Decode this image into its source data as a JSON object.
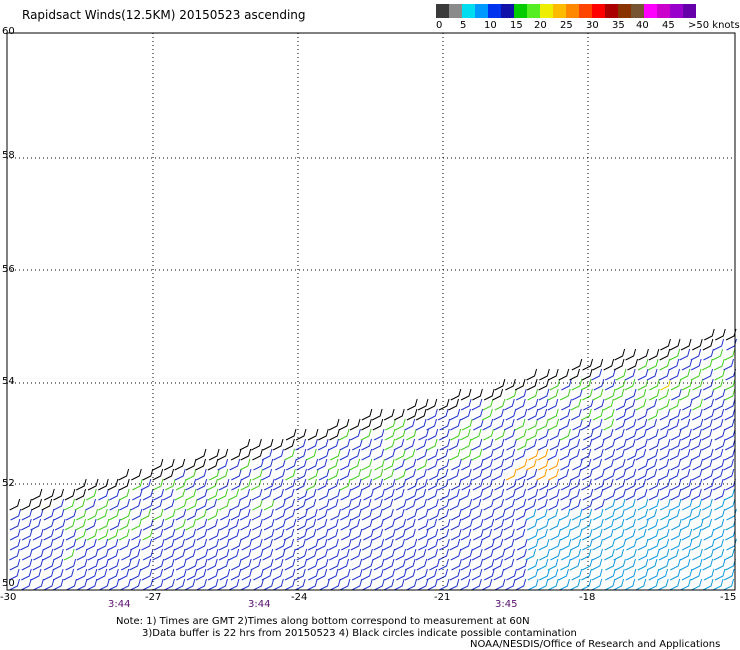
{
  "title": "Rapidsact Winds(12.5KM) 20150523 ascending",
  "scale": {
    "colors": [
      "#3a3a3a",
      "#8a8a8a",
      "#00ddee",
      "#0099ff",
      "#0033ee",
      "#1111aa",
      "#00cc00",
      "#55ee22",
      "#eeee00",
      "#ffbb00",
      "#ff8800",
      "#ff4400",
      "#ff0000",
      "#aa0000",
      "#883300",
      "#775533",
      "#ff00ff",
      "#cc00cc",
      "#9900cc",
      "#6600aa"
    ],
    "labels": [
      "0",
      "5",
      "10",
      "15",
      "20",
      "25",
      "30",
      "35",
      "40",
      "45",
      ">50 knots"
    ]
  },
  "axes": {
    "lon_labels": [
      "-30",
      "-27",
      "-24",
      "-21",
      "-18",
      "-15"
    ],
    "lat_labels": [
      "60",
      "58",
      "56",
      "54",
      "52",
      "50"
    ]
  },
  "times": [
    "3:44",
    "3:44",
    "3:45"
  ],
  "notes": {
    "line1": "Note:  1) Times are GMT  2)Times along bottom correspond to measurement at 60N",
    "line2": "3)Data buffer is 22 hrs from 20150523  4) Black circles indicate possible contamination",
    "line3": "NOAA/NESDIS/Office of Research and Applications"
  },
  "colors": {
    "grid": "#000000",
    "barb_blue": "#2233cc",
    "barb_cyan": "#1199dd",
    "barb_green": "#44cc22",
    "barb_black": "#000000",
    "barb_orange": "#ff9900",
    "barb_yellow": "#eecc00"
  }
}
